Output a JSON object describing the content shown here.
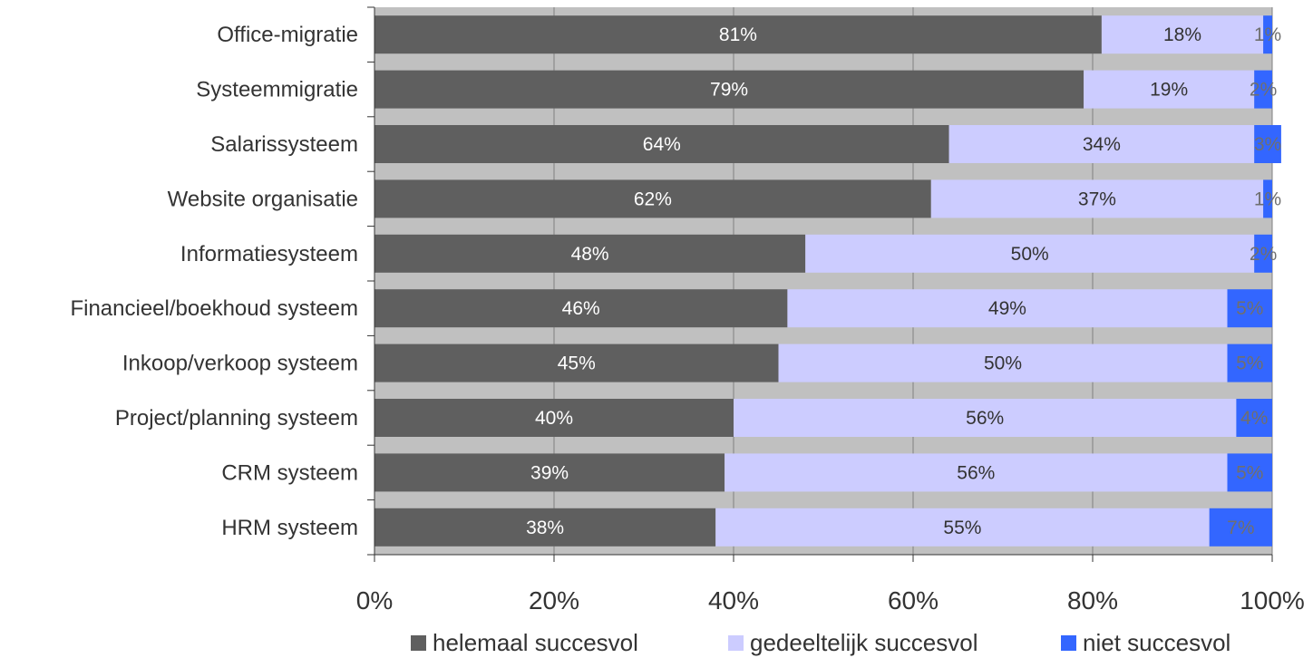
{
  "chart_data": {
    "type": "bar",
    "orientation": "horizontal",
    "stacked": true,
    "categories": [
      "Office-migratie",
      "Systeemmigratie",
      "Salarissysteem",
      "Website organisatie",
      "Informatiesysteem",
      "Financieel/boekhoud systeem",
      "Inkoop/verkoop systeem",
      "Project/planning systeem",
      "CRM systeem",
      "HRM systeem"
    ],
    "series": [
      {
        "name": "helemaal succesvol",
        "color": "#5f5f5f",
        "label_color": "#ffffff",
        "values": [
          81,
          79,
          64,
          62,
          48,
          46,
          45,
          40,
          39,
          38
        ]
      },
      {
        "name": "gedeeltelijk succesvol",
        "color": "#ccccff",
        "label_color": "#333333",
        "values": [
          18,
          19,
          34,
          37,
          50,
          49,
          50,
          56,
          56,
          55
        ]
      },
      {
        "name": "niet succesvol",
        "color": "#3366ff",
        "label_color": "#6f6f6f",
        "values": [
          1,
          2,
          3,
          1,
          2,
          5,
          5,
          4,
          5,
          7
        ]
      }
    ],
    "xlim": [
      0,
      100
    ],
    "x_ticks": [
      0,
      20,
      40,
      60,
      80,
      100
    ],
    "x_tick_labels": [
      "0%",
      "20%",
      "40%",
      "60%",
      "80%",
      "100%"
    ],
    "plot_background": "#c0c0c0",
    "grid": true,
    "legend_position": "bottom"
  }
}
